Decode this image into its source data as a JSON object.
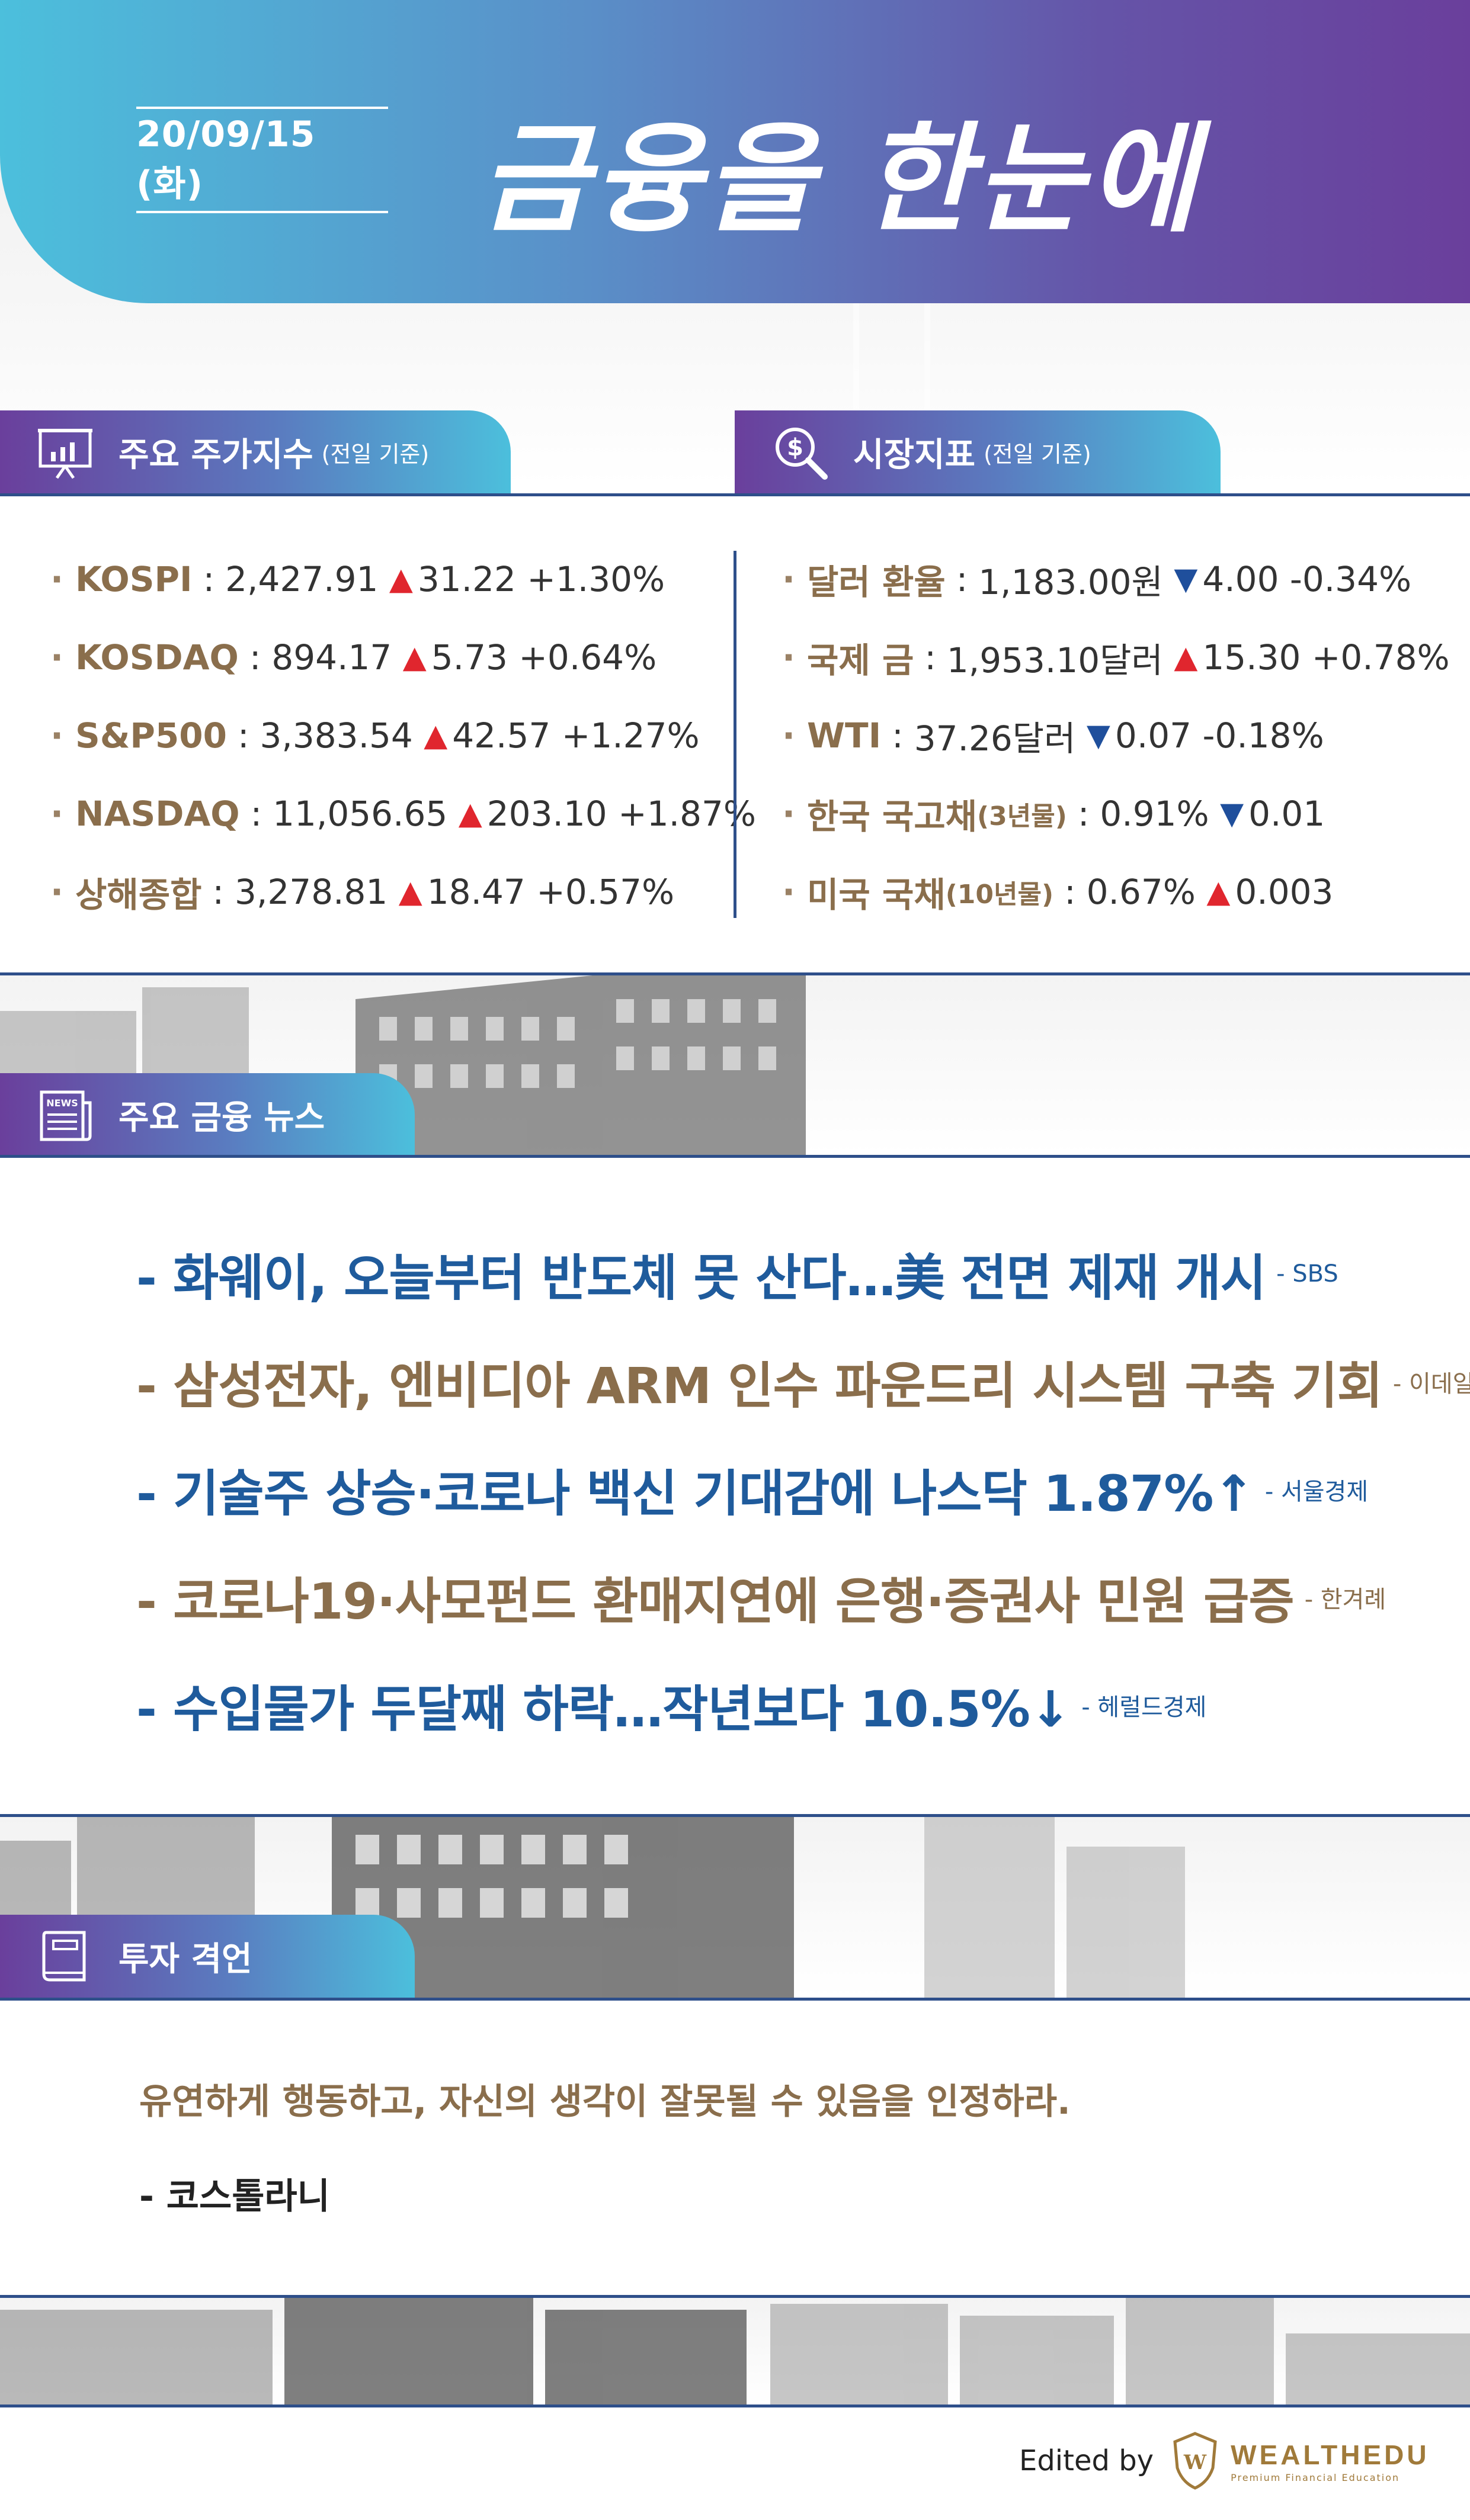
{
  "header": {
    "date": "20/09/15 (화)",
    "title": "금융을 한눈에"
  },
  "stock_section": {
    "title": "주요 주가지수",
    "subtitle": "(전일 기준)",
    "icon": "chart-board-icon",
    "items": [
      {
        "name": "KOSPI",
        "value": "2,427.91",
        "dir": "up",
        "change": "31.22",
        "pct": "+1.30%"
      },
      {
        "name": "KOSDAQ",
        "value": "894.17",
        "dir": "up",
        "change": "5.73",
        "pct": "+0.64%"
      },
      {
        "name": "S&P500",
        "value": "3,383.54",
        "dir": "up",
        "change": "42.57",
        "pct": "+1.27%"
      },
      {
        "name": "NASDAQ",
        "value": "11,056.65",
        "dir": "up",
        "change": "203.10",
        "pct": "+1.87%"
      },
      {
        "name": "상해종합",
        "value": "3,278.81",
        "dir": "up",
        "change": "18.47",
        "pct": "+0.57%"
      }
    ]
  },
  "market_section": {
    "title": "시장지표",
    "subtitle": "(전일 기준)",
    "icon": "dollar-magnifier-icon",
    "items": [
      {
        "name": "달러 환율",
        "name_small": "",
        "value": "1,183.00원",
        "dir": "down",
        "change": "4.00",
        "pct": "-0.34%"
      },
      {
        "name": "국제 금",
        "name_small": "",
        "value": "1,953.10달러",
        "dir": "up",
        "change": "15.30",
        "pct": "+0.78%"
      },
      {
        "name": "WTI",
        "name_small": "",
        "value": "37.26달러",
        "dir": "down",
        "change": "0.07",
        "pct": "-0.18%"
      },
      {
        "name": "한국 국고채",
        "name_small": "(3년물)",
        "value": "0.91%",
        "dir": "down",
        "change": "0.01",
        "pct": ""
      },
      {
        "name": "미국 국채",
        "name_small": "(10년물)",
        "value": "0.67%",
        "dir": "up",
        "change": "0.003",
        "pct": ""
      }
    ]
  },
  "news_section": {
    "title": "주요 금융 뉴스",
    "icon": "newspaper-icon",
    "icon_label": "NEWS",
    "items": [
      {
        "headline": "- 화웨이, 오늘부터 반도체 못 산다…美 전면 제재 개시",
        "source": "- SBS",
        "color": "blue"
      },
      {
        "headline": "- 삼성전자, 엔비디아 ARM 인수 파운드리 시스템 구축 기회",
        "source": "- 이데일리",
        "color": "brown"
      },
      {
        "headline": "- 기술주 상승·코로나 백신 기대감에 나스닥 1.87%↑",
        "source": "- 서울경제",
        "color": "blue"
      },
      {
        "headline": "- 코로나19·사모펀드 환매지연에 은행·증권사 민원 급증",
        "source": "- 한겨례",
        "color": "brown"
      },
      {
        "headline": "- 수입물가 두달째 하락…작년보다 10.5%↓",
        "source": "- 헤럴드경제",
        "color": "blue"
      }
    ]
  },
  "quote_section": {
    "title": "투자 격언",
    "icon": "book-icon",
    "quote": "유연하게 행동하고, 자신의 생각이 잘못될 수 있음을 인정하라.",
    "author": "- 코스톨라니"
  },
  "footer": {
    "edited_by": "Edited by",
    "brand": "WEALTHEDU",
    "brand_tagline": "Premium Financial Education",
    "logo_letter": "W"
  },
  "colors": {
    "gradient_start": "#4cbfdc",
    "gradient_end": "#6a3f9c",
    "rule": "#2e4f8a",
    "up": "#e0262e",
    "down": "#1f4f9c",
    "brown": "#8a6e4c",
    "news_blue": "#1f5b9c"
  }
}
